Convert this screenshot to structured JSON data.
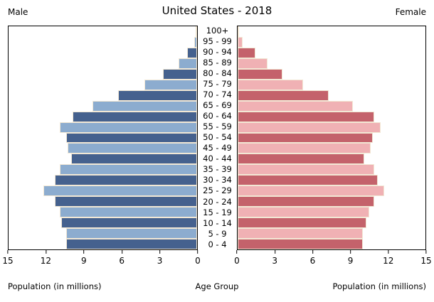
{
  "title": "United States - 2018",
  "headers": {
    "male": "Male",
    "female": "Female"
  },
  "xlabels": {
    "left": "Population (in millions)",
    "center": "Age Group",
    "right": "Population (in millions)"
  },
  "axes": {
    "max_millions": 15,
    "left_ticks": [
      15,
      12,
      9,
      6,
      3,
      0
    ],
    "right_ticks": [
      0,
      3,
      6,
      9,
      12,
      15
    ]
  },
  "colors": {
    "male_dark": "#45618e",
    "male_light": "#8caccf",
    "female_dark": "#c4626b",
    "female_light": "#f0b1b4",
    "bar_edge": "#f2e8d5",
    "axis": "#000000",
    "background": "#ffffff"
  },
  "chart_data": {
    "type": "bar",
    "orientation": "horizontal",
    "title": "United States - 2018",
    "xlabel": "Population (in millions)",
    "ylabel": "Age Group",
    "xlim": [
      0,
      15
    ],
    "grid": false,
    "categories": [
      "0 - 4",
      "5 - 9",
      "10 - 14",
      "15 - 19",
      "20 - 24",
      "25 - 29",
      "30 - 34",
      "35 - 39",
      "40 - 44",
      "45 - 49",
      "50 - 54",
      "55 - 59",
      "60 - 64",
      "65 - 69",
      "70 - 74",
      "75 - 79",
      "80 - 84",
      "85 - 89",
      "90 - 94",
      "95 - 99",
      "100+"
    ],
    "series": [
      {
        "name": "Male",
        "values": [
          10.4,
          10.4,
          10.8,
          10.9,
          11.3,
          12.2,
          11.3,
          10.9,
          10.0,
          10.3,
          10.4,
          10.9,
          9.9,
          8.3,
          6.3,
          4.2,
          2.7,
          1.5,
          0.8,
          0.25,
          0.05
        ]
      },
      {
        "name": "Female",
        "values": [
          10.0,
          10.0,
          10.3,
          10.5,
          10.9,
          11.7,
          11.2,
          10.9,
          10.1,
          10.6,
          10.8,
          11.4,
          10.9,
          9.2,
          7.3,
          5.2,
          3.6,
          2.4,
          1.4,
          0.4,
          0.1
        ]
      }
    ]
  }
}
